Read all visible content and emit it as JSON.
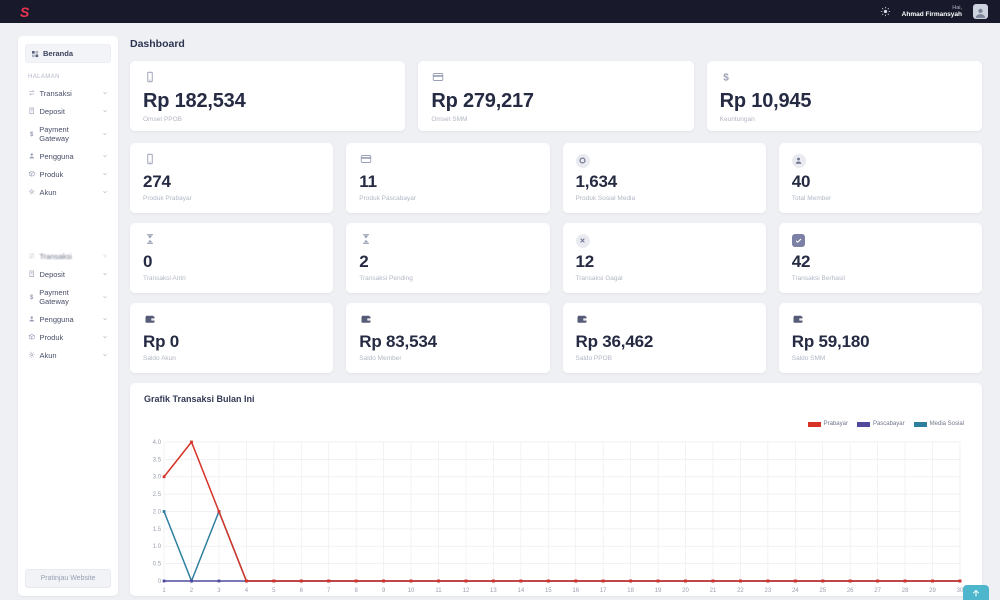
{
  "topbar": {
    "logo": "S",
    "greeting": "Hai,",
    "username": "Ahmad Firmansyah"
  },
  "sidebar": {
    "home_label": "Beranda",
    "home_icon": "grid-icon",
    "section_label": "HALAMAN",
    "menu": [
      {
        "label": "Transaksi",
        "icon": "swap-icon"
      },
      {
        "label": "Deposit",
        "icon": "receipt-icon"
      },
      {
        "label": "Payment Gateway",
        "icon": "dollar-icon"
      },
      {
        "label": "Pengguna",
        "icon": "user-icon"
      },
      {
        "label": "Produk",
        "icon": "box-icon"
      },
      {
        "label": "Akun",
        "icon": "gear-icon"
      }
    ],
    "menu_secondary": [
      {
        "label": "Transaksi",
        "icon": "swap-icon"
      },
      {
        "label": "Deposit",
        "icon": "receipt-icon"
      },
      {
        "label": "Payment Gateway",
        "icon": "dollar-icon"
      },
      {
        "label": "Pengguna",
        "icon": "user-icon"
      },
      {
        "label": "Produk",
        "icon": "box-icon"
      },
      {
        "label": "Akun",
        "icon": "gear-icon"
      }
    ],
    "preview_button_label": "Pratinjau Website"
  },
  "main": {
    "page_title": "Dashboard",
    "summary_cards": [
      {
        "value": "Rp 182,534",
        "label": "Omset PPOB",
        "icon": "smartphone-icon"
      },
      {
        "value": "Rp 279,217",
        "label": "Omset SMM",
        "icon": "credit-card-icon"
      },
      {
        "value": "Rp 10,945",
        "label": "Keuntungan",
        "icon": "dollar-icon"
      }
    ],
    "stat_cards": [
      {
        "value": "274",
        "label": "Produk Prabayar",
        "icon": "smartphone-icon"
      },
      {
        "value": "11",
        "label": "Produk Pascabayar",
        "icon": "credit-card-icon"
      },
      {
        "value": "1,634",
        "label": "Produk Sosial Media",
        "icon": "ring-icon"
      },
      {
        "value": "40",
        "label": "Total Member",
        "icon": "user-icon"
      },
      {
        "value": "0",
        "label": "Transaksi Antri",
        "icon": "hourglass-icon"
      },
      {
        "value": "2",
        "label": "Transaksi Pending",
        "icon": "hourglass-icon"
      },
      {
        "value": "12",
        "label": "Transaksi Gagal",
        "icon": "x-icon"
      },
      {
        "value": "42",
        "label": "Transaksi Berhasil",
        "icon": "check-icon"
      },
      {
        "value": "Rp 0",
        "label": "Saldo Akun",
        "icon": "wallet-icon"
      },
      {
        "value": "Rp 83,534",
        "label": "Saldo Member",
        "icon": "wallet-icon"
      },
      {
        "value": "Rp 36,462",
        "label": "Saldo PPOB",
        "icon": "wallet-icon"
      },
      {
        "value": "Rp 59,180",
        "label": "Saldo SMM",
        "icon": "wallet-icon"
      }
    ]
  },
  "chart_data": {
    "type": "line",
    "title": "Grafik Transaksi Bulan Ini",
    "x": [
      1,
      2,
      3,
      4,
      5,
      6,
      7,
      8,
      9,
      10,
      11,
      12,
      13,
      14,
      15,
      16,
      17,
      18,
      19,
      20,
      21,
      22,
      23,
      24,
      25,
      26,
      27,
      28,
      29,
      30
    ],
    "series": [
      {
        "name": "Prabayar",
        "color": "#d63326",
        "values": [
          3,
          4,
          2,
          0,
          0,
          0,
          0,
          0,
          0,
          0,
          0,
          0,
          0,
          0,
          0,
          0,
          0,
          0,
          0,
          0,
          0,
          0,
          0,
          0,
          0,
          0,
          0,
          0,
          0,
          0
        ]
      },
      {
        "name": "Pascabayar",
        "color": "#4f4a9c",
        "values": [
          0,
          0,
          0,
          0,
          0,
          0,
          0,
          0,
          0,
          0,
          0,
          0,
          0,
          0,
          0,
          0,
          0,
          0,
          0,
          0,
          0,
          0,
          0,
          0,
          0,
          0,
          0,
          0,
          0,
          0
        ]
      },
      {
        "name": "Media Sosial",
        "color": "#2e7e9e",
        "values": [
          2,
          0,
          2,
          0,
          0,
          0,
          0,
          0,
          0,
          0,
          0,
          0,
          0,
          0,
          0,
          0,
          0,
          0,
          0,
          0,
          0,
          0,
          0,
          0,
          0,
          0,
          0,
          0,
          0,
          0
        ]
      }
    ],
    "ylim": [
      0,
      4
    ],
    "yticks": [
      0,
      0.5,
      1.0,
      1.5,
      2.0,
      2.5,
      3.0,
      3.5,
      4.0
    ],
    "xlabel": "",
    "ylabel": "",
    "grid": true,
    "legend_position": "top-right"
  },
  "colors": {
    "topbar_bg": "#181a2b",
    "logo_pink": "#ee3450",
    "accent_red": "#d63326",
    "accent_indigo": "#4f4a9c",
    "accent_teal": "#2e7e9e",
    "scroll_button": "#4db6cc"
  }
}
